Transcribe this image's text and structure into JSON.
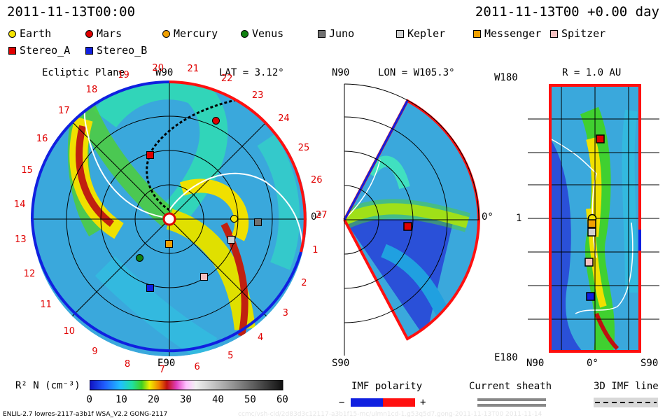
{
  "header": {
    "left_time": "2011-11-13T00:00",
    "right_time": "2011-11-13T00 +0.00 day"
  },
  "legend": {
    "row1": [
      {
        "name": "Earth",
        "shape": "circle",
        "color": "#f5e400"
      },
      {
        "name": "Mars",
        "shape": "circle",
        "color": "#e00000"
      },
      {
        "name": "Mercury",
        "shape": "circle",
        "color": "#f0a000"
      },
      {
        "name": "Venus",
        "shape": "circle",
        "color": "#108010"
      },
      {
        "name": "Juno",
        "shape": "square",
        "color": "#707070"
      },
      {
        "name": "Kepler",
        "shape": "square",
        "color": "#d0d0d0"
      },
      {
        "name": "Messenger",
        "shape": "square",
        "color": "#f0a000"
      },
      {
        "name": "Spitzer",
        "shape": "square",
        "color": "#f4c0c0"
      }
    ],
    "row2": [
      {
        "name": "Stereo_A",
        "shape": "square",
        "color": "#e00000"
      },
      {
        "name": "Stereo_B",
        "shape": "square",
        "color": "#1020e0"
      }
    ]
  },
  "panels": {
    "ecliptic": {
      "title": "Ecliptic Plane",
      "top_label": "W90",
      "lat_label": "LAT = 3.12°",
      "bottom_label": "E90",
      "right_label": "0°",
      "carrington_labels": [
        "1",
        "2",
        "3",
        "4",
        "5",
        "6",
        "7",
        "8",
        "9",
        "10",
        "11",
        "12",
        "13",
        "14",
        "15",
        "16",
        "17",
        "18",
        "19",
        "20",
        "21",
        "22",
        "23",
        "24",
        "25",
        "26",
        "27"
      ]
    },
    "meridional": {
      "top_left": "N90",
      "lon_label": "LON = W105.3°",
      "bottom_left": "S90",
      "right_label": "0°"
    },
    "radial": {
      "title": "R = 1.0 AU",
      "top_left": "W180",
      "mid_left": "1",
      "bottom_left": "E180",
      "x_left": "N90",
      "x_mid": "0°",
      "x_right": "S90"
    }
  },
  "colorbar": {
    "label": "R² N (cm⁻³)",
    "ticks": [
      "0",
      "10",
      "20",
      "30",
      "40",
      "50",
      "60"
    ],
    "range": [
      0,
      60
    ]
  },
  "imf": {
    "polarity_label": "IMF polarity",
    "minus": "−",
    "plus": "+",
    "sheath_label": "Current sheath",
    "line_label": "3D IMF line"
  },
  "footer": {
    "model": "ENLIL-2.7 lowres-2117-a3b1f WSA_V2.2 GONG-2117",
    "watermark": "ccmc/vsh-cld/2d83d3c12117-a3b1f15-mc/ulmn1cd-1.g53q5d7.gong-2011-11-13T00  2011-11-14"
  },
  "chart_data": [
    {
      "type": "heatmap",
      "title": "Ecliptic Plane",
      "variable": "R² N",
      "units": "cm⁻³",
      "color_range": [
        0,
        60
      ],
      "bodies": [
        {
          "name": "Earth",
          "panel": "ecliptic",
          "position_label": "near 0° longitude"
        },
        {
          "name": "Mars",
          "panel": "ecliptic"
        },
        {
          "name": "Mercury",
          "panel": "ecliptic"
        },
        {
          "name": "Venus",
          "panel": "ecliptic"
        },
        {
          "name": "Juno",
          "panel": "ecliptic"
        },
        {
          "name": "Kepler",
          "panel": "ecliptic"
        },
        {
          "name": "Messenger",
          "panel": "ecliptic"
        },
        {
          "name": "Spitzer",
          "panel": "ecliptic"
        },
        {
          "name": "Stereo_A",
          "panel": "ecliptic"
        },
        {
          "name": "Stereo_B",
          "panel": "ecliptic"
        }
      ]
    },
    {
      "type": "heatmap",
      "title": "",
      "xlabel": "",
      "ylabel": "",
      "extra": "LON = W105.3° meridional slice"
    },
    {
      "type": "heatmap",
      "title": "R = 1.0 AU",
      "x_ticks": [
        "N90",
        "0°",
        "S90"
      ],
      "y_ticks": [
        "W180",
        "1",
        "E180"
      ]
    }
  ]
}
